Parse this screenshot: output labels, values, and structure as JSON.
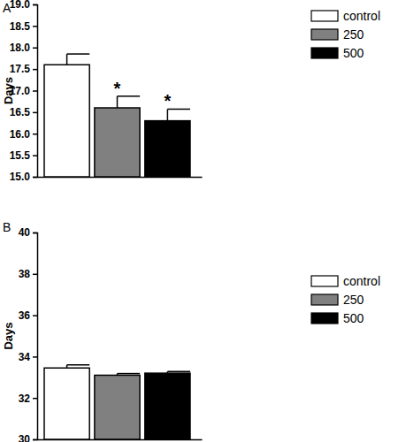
{
  "chart_data": [
    {
      "type": "bar",
      "title": "A",
      "y_label": "Days",
      "categories": [
        "control",
        "250",
        "500"
      ],
      "values": [
        17.6,
        16.6,
        16.3
      ],
      "errors": [
        0.25,
        0.27,
        0.27
      ],
      "annotations": [
        null,
        "*",
        "*"
      ],
      "colors": [
        "#ffffff",
        "#808080",
        "#000000"
      ],
      "ylim": [
        15,
        19
      ],
      "yticks": [
        {
          "value": 15,
          "label": "15.0"
        },
        15.5,
        {
          "value": 16,
          "label": "16.0"
        },
        16.5,
        {
          "value": 17,
          "label": "17.0"
        },
        17.5,
        {
          "value": 18,
          "label": "18.0"
        },
        18.5,
        {
          "value": 19,
          "label": "19.0"
        }
      ],
      "legend": "right",
      "tick_labels": "y",
      "grid": false
    },
    {
      "type": "bar",
      "title": "B",
      "y_label": "Days",
      "categories": [
        "control",
        "250",
        "500"
      ],
      "values": [
        33.45,
        33.1,
        33.2
      ],
      "errors": [
        0.15,
        0.08,
        0.08
      ],
      "colors": [
        "#ffffff",
        "#808080",
        "#000000"
      ],
      "ylim": [
        30,
        40
      ],
      "yticks": [
        30,
        32,
        34,
        36,
        38,
        40
      ],
      "legend": "right",
      "tick_labels": "y",
      "grid": false
    }
  ]
}
